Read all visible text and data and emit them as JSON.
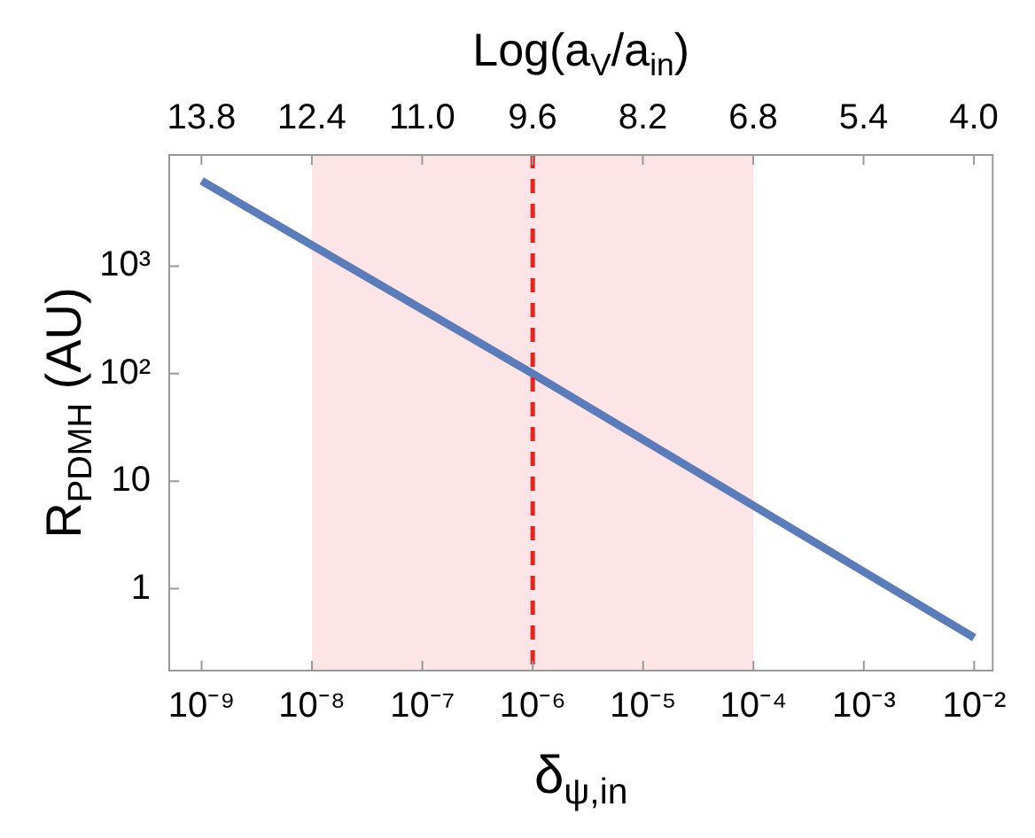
{
  "chart_data": {
    "type": "line",
    "xlabel": "δ$_{ψ,in}$",
    "ylabel": "R$_{PDMH}$ (AU)",
    "x2label": "Log(a$_{V}$/a$_{in}$)",
    "x": [
      1e-09,
      1e-06,
      0.01
    ],
    "series": [
      {
        "color": "#5b7cba",
        "values": [
          6200,
          100,
          0.35
        ]
      }
    ],
    "log": "xy",
    "xlim": [
      5e-10,
      0.015
    ],
    "xticks": [
      {
        "value": 1e-09,
        "label": "10⁻⁹"
      },
      {
        "value": 1e-08,
        "label": "10⁻⁸"
      },
      {
        "value": 1e-07,
        "label": "10⁻⁷"
      },
      {
        "value": 1e-06,
        "label": "10⁻⁶"
      },
      {
        "value": 1e-05,
        "label": "10⁻⁵"
      },
      {
        "value": 0.0001,
        "label": "10⁻⁴"
      },
      {
        "value": 0.001,
        "label": "10⁻³"
      },
      {
        "value": 0.01,
        "label": "10⁻²"
      }
    ],
    "x2lim": [
      14.22,
      3.75
    ],
    "x2ticks": [
      {
        "value": 13.8,
        "label": "13.8"
      },
      {
        "value": 12.4,
        "label": "12.4"
      },
      {
        "value": 11.0,
        "label": "11.0"
      },
      {
        "value": 9.6,
        "label": "9.6"
      },
      {
        "value": 8.2,
        "label": "8.2"
      },
      {
        "value": 6.8,
        "label": "6.8"
      },
      {
        "value": 5.4,
        "label": "5.4"
      },
      {
        "value": 4.0,
        "label": "4.0"
      }
    ],
    "ylim": [
      0.17,
      11000
    ],
    "yticks": [
      1,
      10,
      {
        "value": 100,
        "label": "10²"
      },
      {
        "value": 1000,
        "label": "10³"
      }
    ],
    "bands": [
      {
        "axis": "x",
        "from": 1e-08,
        "to": 0.0001,
        "color": "#fde4e6"
      }
    ],
    "ref_lines": [
      {
        "axis": "x",
        "value": 1e-06,
        "color": "#e8231e",
        "line_style": "dashed"
      }
    ],
    "grid": false,
    "legend": false,
    "marker": "none",
    "line_style": "solid"
  }
}
